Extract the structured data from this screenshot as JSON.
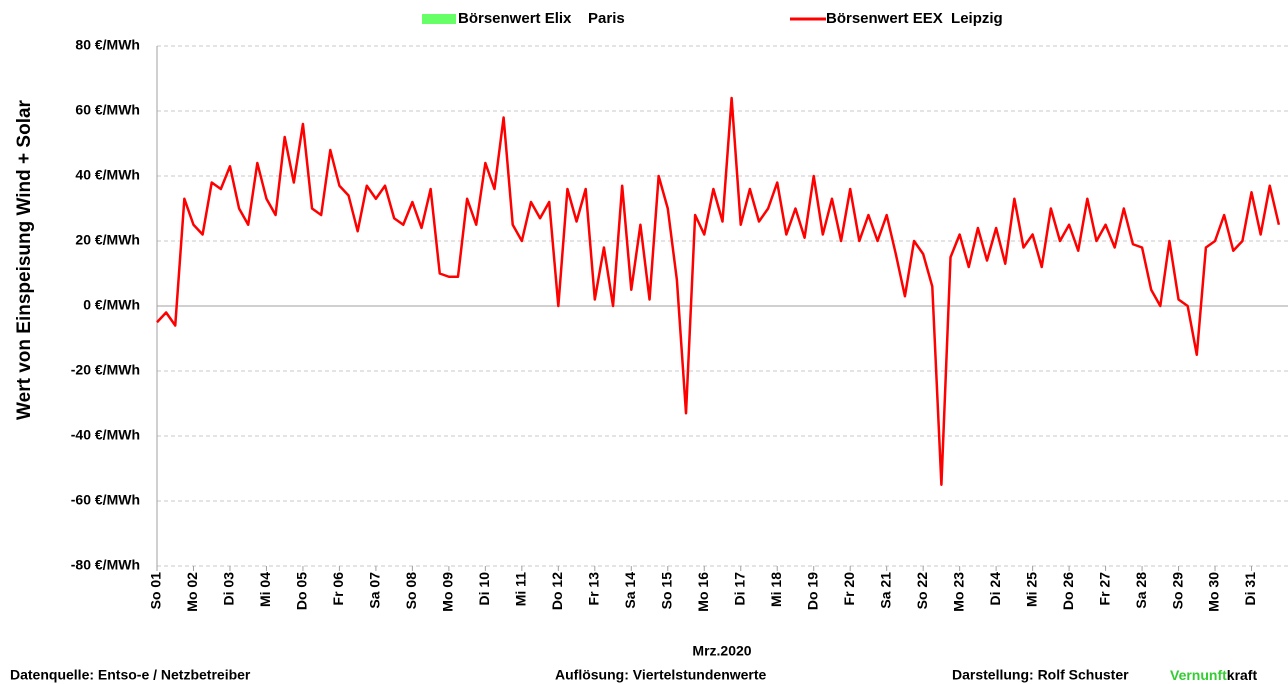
{
  "chart_data": {
    "type": "line",
    "y_title": "Wert von Einspeisung Wind + Solar",
    "x_title": "Mrz.2020",
    "xlim": [
      0,
      31
    ],
    "xticks": [
      {
        "value": 0,
        "label": "So 01"
      },
      {
        "value": 1,
        "label": "Mo 02"
      },
      {
        "value": 2,
        "label": "Di 03"
      },
      {
        "value": 3,
        "label": "Mi 04"
      },
      {
        "value": 4,
        "label": "Do 05"
      },
      {
        "value": 5,
        "label": "Fr 06"
      },
      {
        "value": 6,
        "label": "Sa 07"
      },
      {
        "value": 7,
        "label": "So 08"
      },
      {
        "value": 8,
        "label": "Mo 09"
      },
      {
        "value": 9,
        "label": "Di 10"
      },
      {
        "value": 10,
        "label": "Mi 11"
      },
      {
        "value": 11,
        "label": "Do 12"
      },
      {
        "value": 12,
        "label": "Fr 13"
      },
      {
        "value": 13,
        "label": "Sa 14"
      },
      {
        "value": 14,
        "label": "So 15"
      },
      {
        "value": 15,
        "label": "Mo 16"
      },
      {
        "value": 16,
        "label": "Di 17"
      },
      {
        "value": 17,
        "label": "Mi 18"
      },
      {
        "value": 18,
        "label": "Do 19"
      },
      {
        "value": 19,
        "label": "Fr 20"
      },
      {
        "value": 20,
        "label": "Sa 21"
      },
      {
        "value": 21,
        "label": "So 22"
      },
      {
        "value": 22,
        "label": "Mo 23"
      },
      {
        "value": 23,
        "label": "Di 24"
      },
      {
        "value": 24,
        "label": "Mi 25"
      },
      {
        "value": 25,
        "label": "Do 26"
      },
      {
        "value": 26,
        "label": "Fr 27"
      },
      {
        "value": 27,
        "label": "Sa 28"
      },
      {
        "value": 28,
        "label": "So 29"
      },
      {
        "value": 29,
        "label": "Mo 30"
      },
      {
        "value": 30,
        "label": "Di 31"
      }
    ],
    "ylim": [
      -80,
      80
    ],
    "yticks": [
      {
        "value": 80,
        "label": "80 €/MWh"
      },
      {
        "value": 60,
        "label": "60 €/MWh"
      },
      {
        "value": 40,
        "label": "40 €/MWh"
      },
      {
        "value": 20,
        "label": "20 €/MWh"
      },
      {
        "value": 0,
        "label": "0 €/MWh"
      },
      {
        "value": -20,
        "label": "-20 €/MWh"
      },
      {
        "value": -40,
        "label": "-40 €/MWh"
      },
      {
        "value": -60,
        "label": "-60 €/MWh"
      },
      {
        "value": -80,
        "label": "-80 €/MWh"
      }
    ],
    "negative_tick_color": "#ff0000",
    "grid": true,
    "x": [
      0,
      0.25,
      0.5,
      0.75,
      1,
      1.25,
      1.5,
      1.75,
      2,
      2.25,
      2.5,
      2.75,
      3,
      3.25,
      3.5,
      3.75,
      4,
      4.25,
      4.5,
      4.75,
      5,
      5.25,
      5.5,
      5.75,
      6,
      6.25,
      6.5,
      6.75,
      7,
      7.25,
      7.5,
      7.75,
      8,
      8.25,
      8.5,
      8.75,
      9,
      9.25,
      9.5,
      9.75,
      10,
      10.25,
      10.5,
      10.75,
      11,
      11.25,
      11.5,
      11.75,
      12,
      12.25,
      12.5,
      12.75,
      13,
      13.25,
      13.5,
      13.75,
      14,
      14.25,
      14.5,
      14.75,
      15,
      15.25,
      15.5,
      15.75,
      16,
      16.25,
      16.5,
      16.75,
      17,
      17.25,
      17.5,
      17.75,
      18,
      18.25,
      18.5,
      18.75,
      19,
      19.25,
      19.5,
      19.75,
      20,
      20.25,
      20.5,
      20.75,
      21,
      21.25,
      21.5,
      21.75,
      22,
      22.25,
      22.5,
      22.75,
      23,
      23.25,
      23.5,
      23.75,
      24,
      24.25,
      24.5,
      24.75,
      25,
      25.25,
      25.5,
      25.75,
      26,
      26.25,
      26.5,
      26.75,
      27,
      27.25,
      27.5,
      27.75,
      28,
      28.25,
      28.5,
      28.75,
      29,
      29.25,
      29.5,
      29.75,
      30,
      30.25,
      30.5,
      30.75
    ],
    "series": [
      {
        "name": "Börsenwert Elix    Paris",
        "color": "#66ff66",
        "values": [
          null,
          null,
          null,
          null,
          null,
          null,
          null,
          null,
          null,
          null,
          null,
          null,
          null,
          null,
          null,
          null,
          null,
          null,
          null,
          null,
          null,
          null,
          null,
          null,
          null,
          null,
          null,
          null,
          null,
          null,
          null,
          null,
          null,
          null,
          null,
          null,
          null,
          null,
          null,
          null,
          null,
          null,
          null,
          null,
          null,
          null,
          null,
          null,
          null,
          null,
          null,
          null,
          null,
          null,
          null,
          null,
          null,
          null,
          null,
          null,
          null,
          null,
          null,
          null,
          null,
          null,
          null,
          null,
          null,
          null,
          null,
          null,
          null,
          null,
          null,
          null,
          null,
          null,
          null,
          null,
          null,
          null,
          null,
          null,
          null,
          null,
          null,
          null,
          null,
          null,
          null,
          null,
          null,
          null,
          null,
          null,
          null,
          null,
          null,
          null,
          null,
          null,
          null,
          null,
          null,
          null,
          null,
          null,
          null,
          null,
          null,
          null,
          null,
          null,
          null,
          null,
          null,
          null,
          null,
          null,
          null,
          null,
          null,
          null
        ]
      },
      {
        "name": "Börsenwert EEX  Leipzig",
        "color": "#ff0000",
        "values": [
          -5,
          -2,
          -6,
          33,
          25,
          22,
          38,
          36,
          43,
          30,
          25,
          44,
          33,
          28,
          52,
          38,
          56,
          30,
          28,
          48,
          37,
          34,
          23,
          37,
          33,
          37,
          27,
          25,
          32,
          24,
          36,
          10,
          9,
          9,
          33,
          25,
          44,
          36,
          58,
          25,
          20,
          32,
          27,
          32,
          0,
          36,
          26,
          36,
          2,
          18,
          0,
          37,
          5,
          25,
          2,
          40,
          30,
          8,
          -33,
          28,
          22,
          36,
          26,
          64,
          25,
          36,
          26,
          30,
          38,
          22,
          30,
          21,
          40,
          22,
          33,
          20,
          36,
          20,
          28,
          20,
          28,
          16,
          3,
          20,
          16,
          6,
          -55,
          15,
          22,
          12,
          24,
          14,
          24,
          13,
          33,
          18,
          22,
          12,
          30,
          20,
          25,
          17,
          33,
          20,
          25,
          18,
          30,
          19,
          18,
          5,
          0,
          20,
          2,
          0,
          -15,
          18,
          20,
          28,
          17,
          20,
          35,
          22,
          37,
          25
        ]
      }
    ],
    "footer_left": "Datenquelle:  Entso-e  / Netzbetreiber",
    "footer_center": "Auflösung: Viertelstundenwerte",
    "footer_right": "Darstellung:  Rolf Schuster",
    "brand_green": "Vernunft",
    "brand_black": "kraft"
  }
}
